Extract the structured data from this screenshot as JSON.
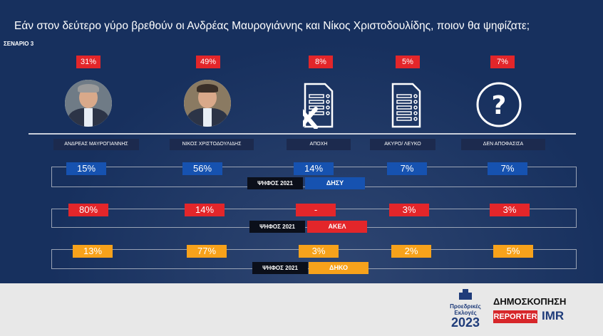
{
  "title": "Εάν στον δεύτερο γύρο βρεθούν οι Ανδρέας Μαυρογιάννης και Νίκος Χριστοδουλίδης, ποιον θα ψηφίζατε;",
  "scenario": "ΣΕΝΑΡΙΟ 3",
  "chart_data": {
    "type": "table",
    "categories": [
      "ΑΝΔΡΕΑΣ ΜΑΥΡΟΓΙΑΝΝΗΣ",
      "ΝΙΚΟΣ ΧΡΙΣΤΟΔΟΥΛΙΔΗΣ",
      "ΑΠΟΧΗ",
      "ΑΚΥΡΟ/ ΛΕΥΚΟ",
      "ΔΕΝ ΑΠΟΦΑΣΙΣΑ"
    ],
    "overall": [
      "31%",
      "49%",
      "8%",
      "5%",
      "7%"
    ],
    "series": [
      {
        "name": "ΔΗΣΥ",
        "label": "ΨΗΦΟΣ 2021",
        "color": "#1652b0",
        "values": [
          "15%",
          "56%",
          "14%",
          "7%",
          "7%"
        ]
      },
      {
        "name": "ΑΚΕΛ",
        "label": "ΨΗΦΟΣ 2021",
        "color": "#e3262a",
        "values": [
          "80%",
          "14%",
          "-",
          "3%",
          "3%"
        ]
      },
      {
        "name": "ΔΗΚΟ",
        "label": "ΨΗΦΟΣ 2021",
        "color": "#f7a21b",
        "values": [
          "13%",
          "77%",
          "3%",
          "2%",
          "5%"
        ]
      }
    ]
  },
  "icons": [
    "avatar-mavrogiannis",
    "avatar-christodoulides",
    "ballot-crossed-icon",
    "ballot-icon",
    "question-icon"
  ],
  "footer": {
    "elections_line1": "Προεδρικές",
    "elections_line2": "Εκλογές",
    "elections_year": "2023",
    "poll": "ΔΗΜΟΣΚΟΠΗΣΗ",
    "reporter": "REPORTER",
    "imr": "IMR"
  }
}
